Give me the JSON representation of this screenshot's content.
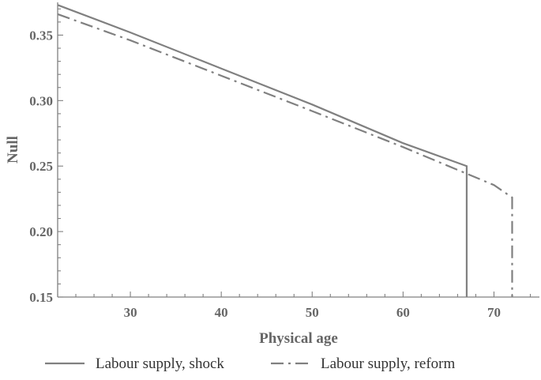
{
  "chart_data": {
    "type": "line",
    "title": "",
    "xlabel": "Physical age",
    "ylabel": "Null",
    "xlim": [
      22,
      75
    ],
    "ylim": [
      0.15,
      0.375
    ],
    "x_ticks": [
      30,
      40,
      50,
      60,
      70
    ],
    "y_ticks": [
      0.15,
      0.2,
      0.25,
      0.3,
      0.35
    ],
    "x_tick_labels": [
      "30",
      "40",
      "50",
      "60",
      "70"
    ],
    "y_tick_labels": [
      "0.15",
      "0.20",
      "0.25",
      "0.30",
      "0.35"
    ],
    "grid": false,
    "legend_position": "bottom",
    "series": [
      {
        "name": "Labour supply, shock",
        "style": "solid",
        "color": "#808080",
        "x": [
          22,
          30,
          40,
          50,
          60,
          67,
          67
        ],
        "y": [
          0.373,
          0.352,
          0.3245,
          0.297,
          0.2675,
          0.25,
          0.15
        ]
      },
      {
        "name": "Labour supply, reform",
        "style": "dashdot",
        "color": "#808080",
        "x": [
          22,
          30,
          40,
          50,
          60,
          70,
          72,
          72
        ],
        "y": [
          0.366,
          0.346,
          0.319,
          0.292,
          0.2645,
          0.2355,
          0.226,
          0.15
        ]
      }
    ]
  }
}
